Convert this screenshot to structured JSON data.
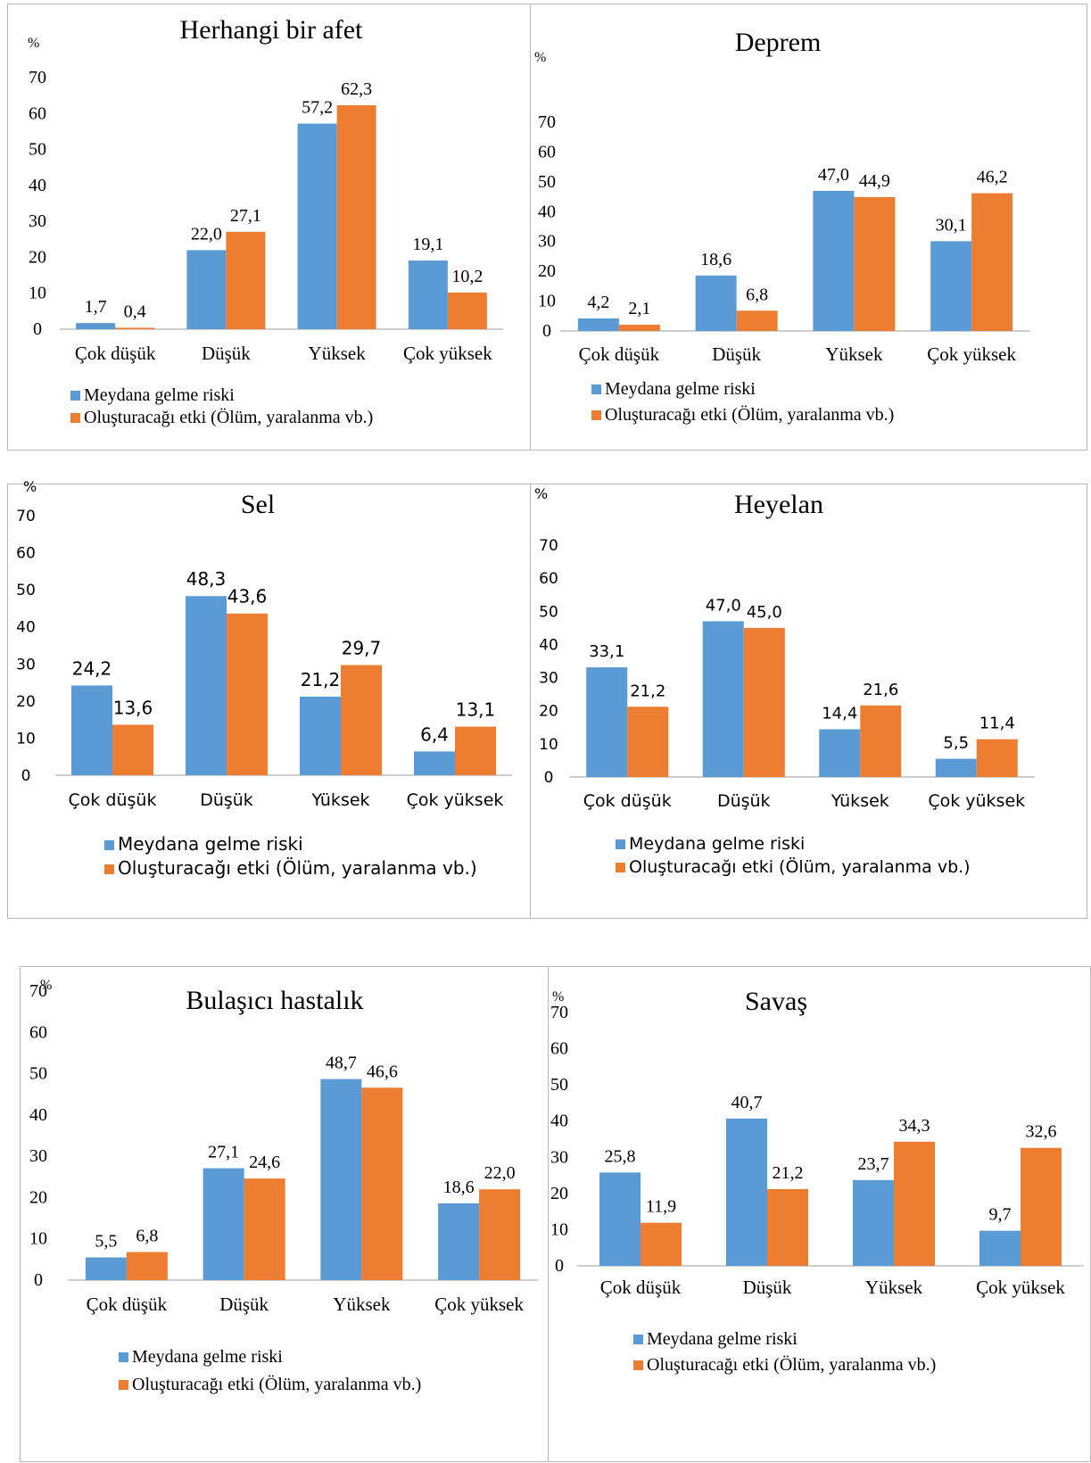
{
  "colors": {
    "blue": "#5b9bd5",
    "orange": "#ed7d31",
    "axis": "#bfbfbf",
    "border": "#b7b7b7"
  },
  "legend": {
    "series1": "Meydana gelme riski",
    "series2": "Oluşturacağı etki (Ölüm, yaralanma vb.)"
  },
  "unit": "%",
  "chart_data": [
    {
      "type": "bar",
      "title": "Herhangi bir afet",
      "ylabel": "%",
      "ylim": [
        0,
        70
      ],
      "categories": [
        "Çok düşük",
        "Düşük",
        "Yüksek",
        "Çok yüksek"
      ],
      "series": [
        {
          "name": "Meydana gelme riski",
          "values": [
            1.7,
            22.0,
            57.2,
            19.1
          ],
          "labels": [
            "1,7",
            "22,0",
            "57,2",
            "19,1"
          ]
        },
        {
          "name": "Oluşturacağı etki (Ölüm, yaralanma vb.)",
          "values": [
            0.4,
            27.1,
            62.3,
            10.2
          ],
          "labels": [
            "0,4",
            "27,1",
            "62,3",
            "10,2"
          ]
        }
      ],
      "legend": "bottom-left"
    },
    {
      "type": "bar",
      "title": "Deprem",
      "ylabel": "%",
      "ylim": [
        0,
        70
      ],
      "categories": [
        "Çok düşük",
        "Düşük",
        "Yüksek",
        "Çok yüksek"
      ],
      "series": [
        {
          "name": "Meydana gelme riski",
          "values": [
            4.2,
            18.6,
            47.0,
            30.1
          ],
          "labels": [
            "4,2",
            "18,6",
            "47,0",
            "30,1"
          ]
        },
        {
          "name": "Oluşturacağı etki (Ölüm, yaralanma vb.)",
          "values": [
            2.1,
            6.8,
            44.9,
            46.2
          ],
          "labels": [
            "2,1",
            "6,8",
            "44,9",
            "46,2"
          ]
        }
      ],
      "legend": "bottom-left"
    },
    {
      "type": "bar",
      "title": "Sel",
      "ylabel": "%",
      "ylim": [
        0,
        70
      ],
      "categories": [
        "Çok düşük",
        "Düşük",
        "Yüksek",
        "Çok yüksek"
      ],
      "series": [
        {
          "name": "Meydana gelme riski",
          "values": [
            24.2,
            48.3,
            21.2,
            6.4
          ],
          "labels": [
            "24,2",
            "48,3",
            "21,2",
            "6,4"
          ]
        },
        {
          "name": "Oluşturacağı etki (Ölüm, yaralanma vb.)",
          "values": [
            13.6,
            43.6,
            29.7,
            13.1
          ],
          "labels": [
            "13,6",
            "43,6",
            "29,7",
            "13,1"
          ]
        }
      ],
      "legend": "bottom-left"
    },
    {
      "type": "bar",
      "title": "Heyelan",
      "ylabel": "%",
      "ylim": [
        0,
        70
      ],
      "categories": [
        "Çok düşük",
        "Düşük",
        "Yüksek",
        "Çok yüksek"
      ],
      "series": [
        {
          "name": "Meydana gelme riski",
          "values": [
            33.1,
            47.0,
            14.4,
            5.5
          ],
          "labels": [
            "33,1",
            "47,0",
            "14,4",
            "5,5"
          ]
        },
        {
          "name": "Oluşturacağı etki (Ölüm, yaralanma vb.)",
          "values": [
            21.2,
            45.0,
            21.6,
            11.4
          ],
          "labels": [
            "21,2",
            "45,0",
            "21,6",
            "11,4"
          ]
        }
      ],
      "legend": "bottom-left"
    },
    {
      "type": "bar",
      "title": "Bulaşıcı hastalık",
      "ylabel": "%",
      "ylim": [
        0,
        70
      ],
      "categories": [
        "Çok düşük",
        "Düşük",
        "Yüksek",
        "Çok yüksek"
      ],
      "series": [
        {
          "name": "Meydana gelme riski",
          "values": [
            5.5,
            27.1,
            48.7,
            18.6
          ],
          "labels": [
            "5,5",
            "27,1",
            "48,7",
            "18,6"
          ]
        },
        {
          "name": "Oluşturacağı etki (Ölüm, yaralanma vb.)",
          "values": [
            6.8,
            24.6,
            46.6,
            22.0
          ],
          "labels": [
            "6,8",
            "24,6",
            "46,6",
            "22,0"
          ]
        }
      ],
      "legend": "bottom-left"
    },
    {
      "type": "bar",
      "title": "Savaş",
      "ylabel": "%",
      "ylim": [
        0,
        70
      ],
      "categories": [
        "Çok düşük",
        "Düşük",
        "Yüksek",
        "Çok yüksek"
      ],
      "series": [
        {
          "name": "Meydana gelme riski",
          "values": [
            25.8,
            40.7,
            23.7,
            9.7
          ],
          "labels": [
            "25,8",
            "40,7",
            "23,7",
            "9,7"
          ]
        },
        {
          "name": "Oluşturacağı etki (Ölüm, yaralanma vb.)",
          "values": [
            11.9,
            21.2,
            34.3,
            32.6
          ],
          "labels": [
            "11,9",
            "21,2",
            "34,3",
            "32,6"
          ]
        }
      ],
      "legend": "bottom-left"
    }
  ]
}
